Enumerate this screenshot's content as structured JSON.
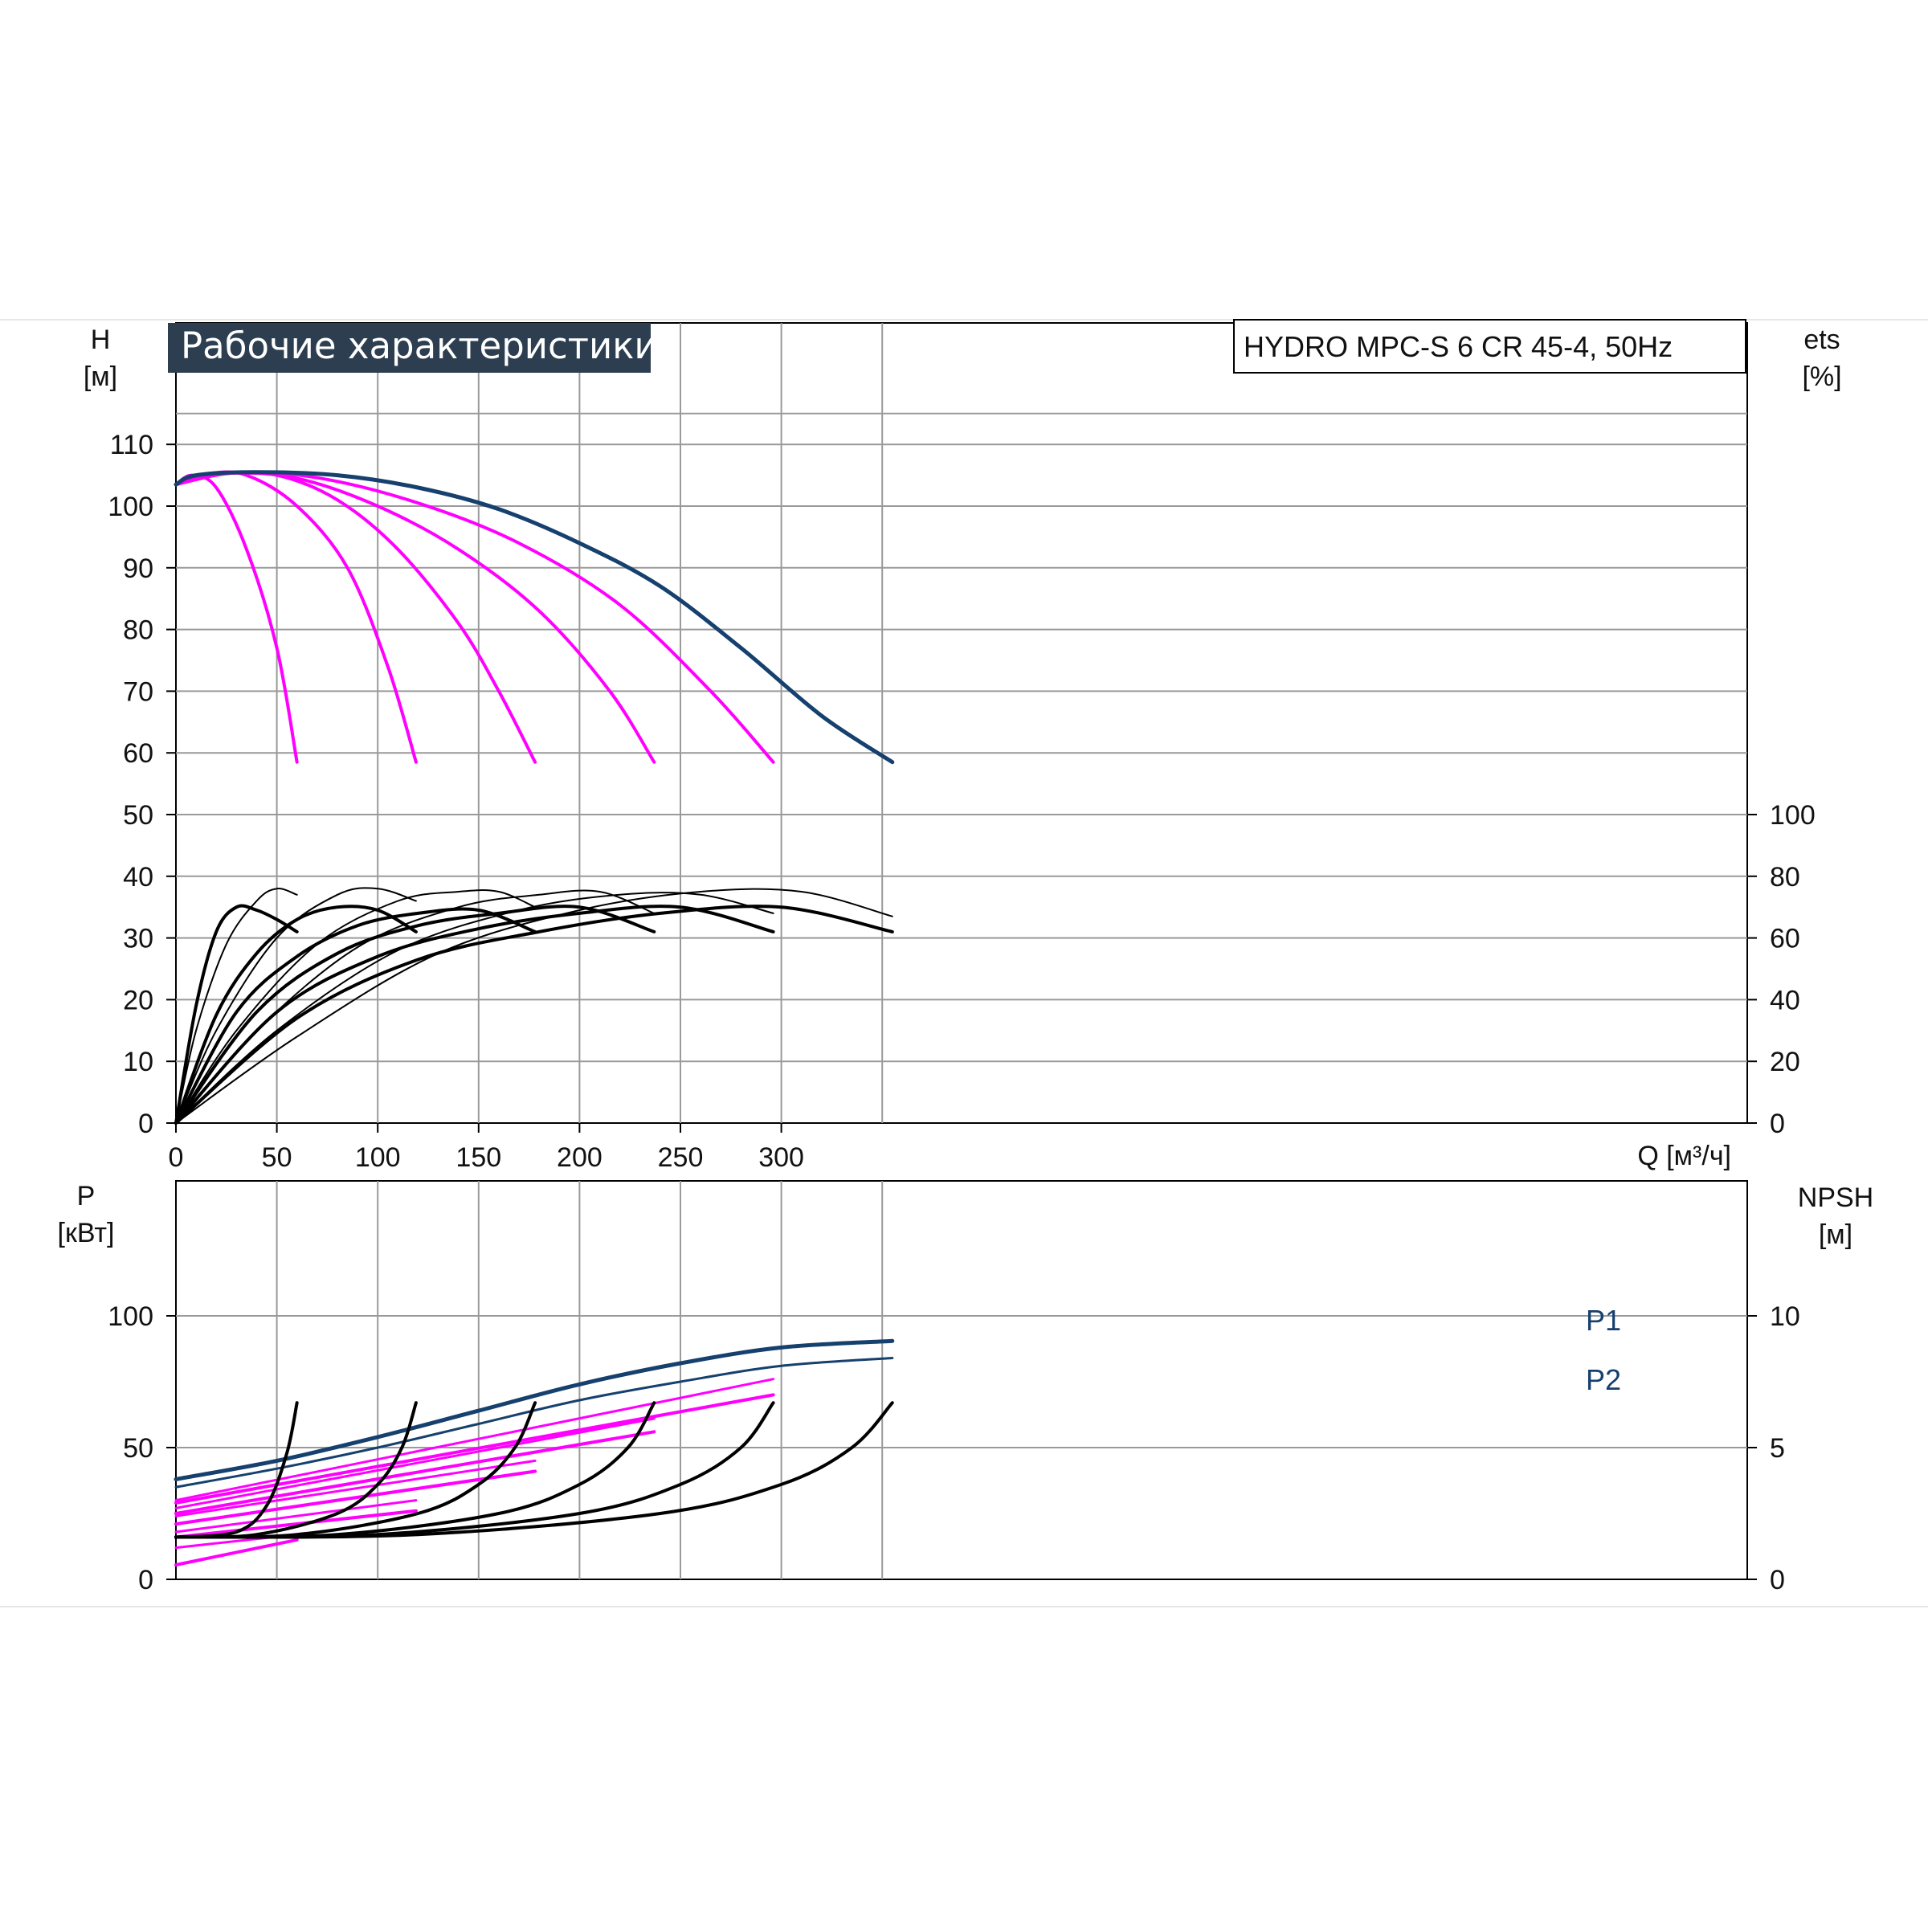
{
  "colors": {
    "max_speed": "#16406e",
    "reduced_speed": "#ff00ff",
    "efficiency": "#000000",
    "grid": "#9a9a9a",
    "title_bg": "#2c3e50"
  },
  "chart_data": [
    {
      "type": "line",
      "panel": "head_efficiency",
      "title": "Рабочие характеристики",
      "model": "HYDRO MPC-S 6 CR 45-4, 50Hz",
      "xlabel": "Q [м³/ч]",
      "ylabel_left": [
        "H",
        "[м]"
      ],
      "ylabel_right": [
        "ets",
        "[%]"
      ],
      "x_ticks": [
        "0",
        "50",
        "100",
        "150",
        "200",
        "250",
        "300"
      ],
      "y_left_ticks": [
        "0",
        "10",
        "20",
        "30",
        "40",
        "50",
        "60",
        "70",
        "80",
        "90",
        "100",
        "110"
      ],
      "y_right_ticks": [
        "0",
        "20",
        "40",
        "60",
        "80",
        "100"
      ],
      "xlim": [
        0,
        390
      ],
      "ylim_left": [
        0,
        120
      ],
      "ylim_right": [
        0,
        100
      ],
      "right_axis_zero_at_left": 0,
      "right_axis_hundred_at_left": 50,
      "grid": true,
      "head_series": [
        {
          "pumps": 1,
          "x": [
            0,
            8,
            20,
            35,
            50,
            60
          ],
          "y": [
            103.5,
            105,
            103,
            93,
            77,
            58.5
          ]
        },
        {
          "pumps": 2,
          "x": [
            0,
            15,
            35,
            60,
            85,
            105,
            119
          ],
          "y": [
            103.5,
            105.2,
            105,
            100,
            90,
            74,
            58.5
          ]
        },
        {
          "pumps": 3,
          "x": [
            0,
            20,
            50,
            80,
            110,
            140,
            160,
            178
          ],
          "y": [
            103.5,
            105.3,
            105,
            101,
            93,
            81,
            70,
            58.5
          ]
        },
        {
          "pumps": 4,
          "x": [
            0,
            25,
            60,
            100,
            140,
            180,
            215,
            237
          ],
          "y": [
            103.5,
            105.3,
            104.5,
            100,
            93,
            83,
            70,
            58.5
          ]
        },
        {
          "pumps": 5,
          "x": [
            0,
            30,
            70,
            120,
            170,
            220,
            265,
            296
          ],
          "y": [
            103.5,
            105.4,
            104.6,
            100.5,
            94,
            84,
            70,
            58.5
          ]
        },
        {
          "pumps": 6,
          "x": [
            0,
            10,
            40,
            80,
            120,
            160,
            200,
            240,
            280,
            320,
            355
          ],
          "y": [
            103.5,
            105,
            105.5,
            105,
            103,
            99.5,
            94,
            87,
            77,
            66,
            58.5
          ]
        }
      ],
      "efficiency_series": [
        {
          "x": [
            0,
            10,
            20,
            30,
            40,
            50,
            60
          ],
          "y": [
            0,
            38,
            62,
            70,
            69,
            66,
            62
          ]
        },
        {
          "x": [
            0,
            10,
            25,
            40,
            50,
            60
          ],
          "y": [
            0,
            30,
            58,
            72,
            76,
            74
          ]
        },
        {
          "x": [
            0,
            20,
            40,
            60,
            80,
            100,
            119
          ],
          "y": [
            0,
            35,
            55,
            66,
            70,
            69,
            62
          ]
        },
        {
          "x": [
            0,
            20,
            50,
            80,
            100,
            119
          ],
          "y": [
            0,
            30,
            60,
            74,
            76,
            72
          ]
        },
        {
          "x": [
            0,
            30,
            60,
            90,
            120,
            150,
            178
          ],
          "y": [
            0,
            36,
            54,
            64,
            68,
            69,
            62
          ]
        },
        {
          "x": [
            0,
            30,
            70,
            110,
            140,
            160,
            178
          ],
          "y": [
            0,
            30,
            58,
            72,
            75,
            75,
            70
          ]
        },
        {
          "x": [
            0,
            40,
            80,
            120,
            160,
            200,
            237
          ],
          "y": [
            0,
            36,
            55,
            64,
            68,
            70,
            62
          ]
        },
        {
          "x": [
            0,
            40,
            90,
            140,
            180,
            210,
            237
          ],
          "y": [
            0,
            30,
            57,
            70,
            74,
            75,
            68
          ]
        },
        {
          "x": [
            0,
            50,
            100,
            150,
            200,
            250,
            296
          ],
          "y": [
            0,
            36,
            54,
            63,
            68,
            70,
            62
          ]
        },
        {
          "x": [
            0,
            50,
            110,
            170,
            220,
            260,
            296
          ],
          "y": [
            0,
            30,
            56,
            69,
            74,
            74,
            68
          ]
        },
        {
          "x": [
            0,
            60,
            120,
            180,
            240,
            300,
            355
          ],
          "y": [
            0,
            34,
            53,
            62,
            68,
            70,
            62
          ]
        },
        {
          "x": [
            0,
            60,
            130,
            200,
            260,
            310,
            355
          ],
          "y": [
            0,
            28,
            55,
            69,
            75,
            75,
            67
          ]
        }
      ]
    },
    {
      "type": "line",
      "panel": "power_npsh",
      "ylabel_left": [
        "P",
        "[кВт]"
      ],
      "ylabel_right": [
        "NPSH",
        "[м]"
      ],
      "y_left_ticks": [
        "0",
        "50",
        "100"
      ],
      "y_right_ticks": [
        "0",
        "5",
        "10"
      ],
      "xlim": [
        0,
        390
      ],
      "ylim_left": [
        0,
        150
      ],
      "ylim_right": [
        0,
        15
      ],
      "grid": true,
      "series_labels": [
        "P1",
        "P2"
      ],
      "p1_max": {
        "x": [
          0,
          50,
          100,
          150,
          200,
          250,
          300,
          355
        ],
        "y": [
          38,
          45,
          54,
          64,
          74,
          82,
          88,
          90.5
        ]
      },
      "p2_max": {
        "x": [
          0,
          50,
          100,
          150,
          200,
          250,
          300,
          355
        ],
        "y": [
          35,
          42,
          50,
          59,
          68,
          75,
          81,
          84
        ]
      },
      "power_reduced": [
        {
          "x": [
            0,
            60
          ],
          "y": [
            5.5,
            15
          ]
        },
        {
          "x": [
            0,
            60
          ],
          "y": [
            12,
            17
          ]
        },
        {
          "x": [
            0,
            119
          ],
          "y": [
            16,
            26
          ]
        },
        {
          "x": [
            0,
            119
          ],
          "y": [
            18,
            30
          ]
        },
        {
          "x": [
            0,
            178
          ],
          "y": [
            21,
            41
          ]
        },
        {
          "x": [
            0,
            178
          ],
          "y": [
            24,
            45
          ]
        },
        {
          "x": [
            0,
            237
          ],
          "y": [
            25,
            56
          ]
        },
        {
          "x": [
            0,
            237
          ],
          "y": [
            27,
            61
          ]
        },
        {
          "x": [
            0,
            296
          ],
          "y": [
            29,
            70
          ]
        },
        {
          "x": [
            0,
            296
          ],
          "y": [
            30,
            76
          ]
        }
      ],
      "npsh_series": [
        {
          "x": [
            0,
            30,
            45,
            55,
            60
          ],
          "y": [
            1.6,
            1.8,
            2.8,
            4.8,
            6.7
          ]
        },
        {
          "x": [
            0,
            40,
            80,
            100,
            112,
            119
          ],
          "y": [
            1.6,
            1.7,
            2.5,
            3.6,
            5.0,
            6.7
          ]
        },
        {
          "x": [
            0,
            60,
            120,
            150,
            168,
            178
          ],
          "y": [
            1.6,
            1.7,
            2.5,
            3.6,
            5.0,
            6.7
          ]
        },
        {
          "x": [
            0,
            80,
            160,
            200,
            224,
            237
          ],
          "y": [
            1.6,
            1.7,
            2.5,
            3.6,
            5.0,
            6.7
          ]
        },
        {
          "x": [
            0,
            100,
            200,
            250,
            280,
            296
          ],
          "y": [
            1.6,
            1.7,
            2.5,
            3.6,
            5.0,
            6.7
          ]
        },
        {
          "x": [
            0,
            120,
            240,
            300,
            335,
            355
          ],
          "y": [
            1.6,
            1.7,
            2.5,
            3.6,
            5.0,
            6.7
          ]
        }
      ]
    }
  ]
}
